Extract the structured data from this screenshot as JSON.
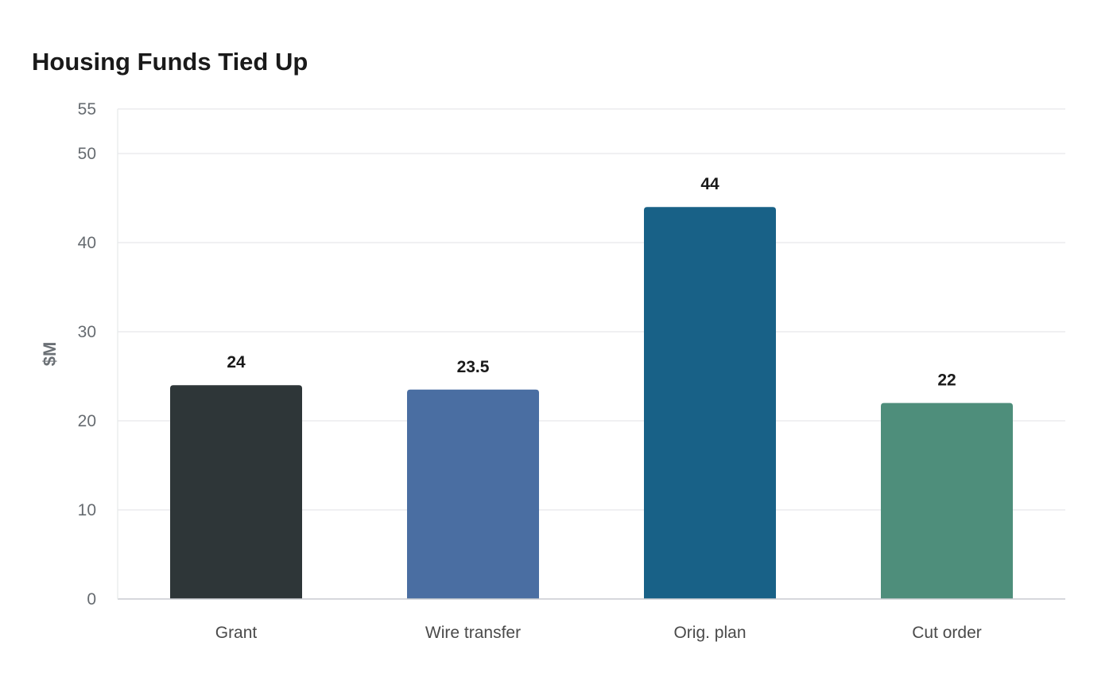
{
  "chart_data": {
    "type": "bar",
    "title": "Housing Funds Tied Up",
    "xlabel": "",
    "ylabel": "$M",
    "categories": [
      "Grant",
      "Wire transfer",
      "Orig. plan",
      "Cut order"
    ],
    "values": [
      24,
      23.5,
      44,
      22
    ],
    "value_labels": [
      "24",
      "23.5",
      "44",
      "22"
    ],
    "colors": [
      "#2e3638",
      "#4a6ea2",
      "#186187",
      "#4e8e7b"
    ],
    "ylim": [
      0,
      55
    ],
    "yticks": [
      0,
      10,
      20,
      30,
      40,
      50,
      55
    ],
    "grid": true,
    "legend": "none"
  }
}
